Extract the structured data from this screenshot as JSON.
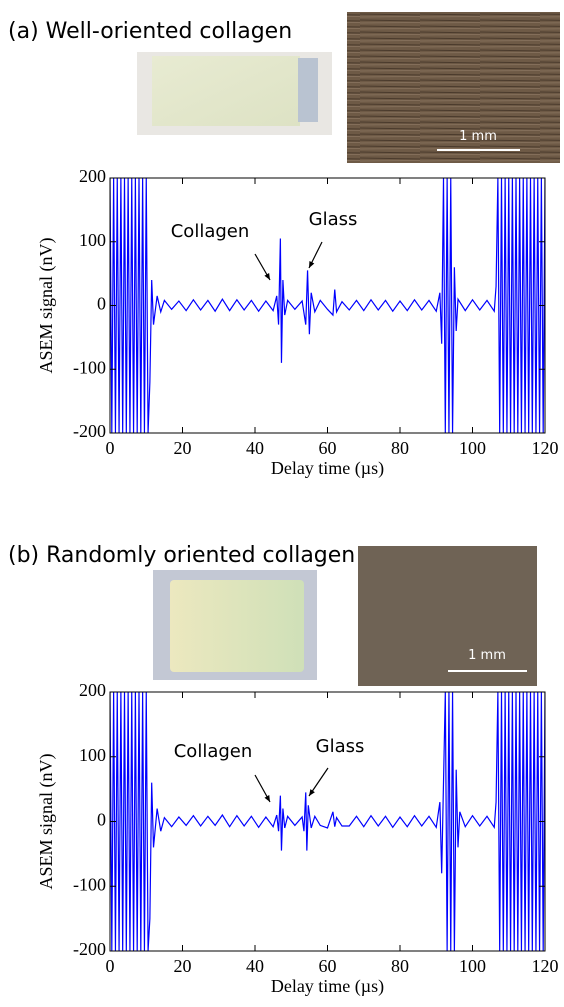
{
  "chart_data": [
    {
      "type": "line",
      "title": "(a) Well-oriented collagen",
      "scale_bar_label": "1 mm",
      "x_label": "Delay time (µs)",
      "y_label": "ASEM signal (nV)",
      "annotations": [
        "Collagen",
        "Glass"
      ],
      "xlim": [
        0,
        120
      ],
      "ylim": [
        -200,
        200
      ],
      "xticks": [
        0,
        20,
        40,
        60,
        80,
        100,
        120
      ],
      "yticks": [
        -200,
        -100,
        0,
        100,
        200
      ],
      "color": "#0000ff",
      "x": [
        0,
        0.5,
        1,
        1.5,
        2,
        2.5,
        3,
        3.5,
        4,
        4.5,
        5,
        5.5,
        6,
        6.5,
        7,
        7.5,
        8,
        8.5,
        9,
        9.5,
        10,
        10.5,
        11,
        11.5,
        12,
        13,
        14,
        15,
        17,
        19,
        21,
        23,
        25,
        27,
        29,
        31,
        33,
        35,
        37,
        39,
        41,
        43,
        45,
        46,
        46.5,
        47,
        47.3,
        47.7,
        48.2,
        49,
        51,
        53,
        54,
        54.5,
        55,
        55.5,
        56.5,
        58,
        60,
        61.5,
        62,
        62.5,
        64,
        66,
        68,
        70,
        72,
        74,
        76,
        78,
        80,
        82,
        84,
        86,
        88,
        90,
        91,
        91.5,
        92,
        92.5,
        93,
        93.5,
        94,
        94.5,
        95,
        95.5,
        96,
        98,
        100,
        102,
        104,
        106,
        106.5,
        107,
        107.5,
        108,
        108.5,
        109,
        109.5,
        110,
        110.5,
        111,
        111.5,
        112,
        112.5,
        113,
        113.5,
        114,
        114.5,
        115,
        115.5,
        116,
        116.5,
        117,
        117.5,
        118,
        118.5,
        119,
        119.5,
        120
      ],
      "values": [
        200,
        -200,
        200,
        -200,
        200,
        -200,
        200,
        -200,
        200,
        -200,
        200,
        -200,
        200,
        -200,
        200,
        -200,
        200,
        -200,
        200,
        -200,
        200,
        -200,
        -120,
        40,
        -30,
        15,
        -10,
        8,
        -6,
        7,
        -8,
        9,
        -7,
        8,
        -9,
        10,
        -8,
        9,
        -7,
        8,
        -9,
        7,
        -8,
        15,
        -30,
        105,
        -90,
        40,
        -15,
        8,
        -6,
        7,
        -30,
        55,
        -45,
        20,
        -10,
        8,
        -6,
        -15,
        25,
        -10,
        6,
        -7,
        8,
        -8,
        9,
        -7,
        8,
        -9,
        7,
        -8,
        9,
        -7,
        8,
        -9,
        20,
        -60,
        200,
        -200,
        200,
        -200,
        200,
        -200,
        60,
        -40,
        10,
        -8,
        9,
        -7,
        8,
        -9,
        30,
        200,
        -200,
        200,
        -200,
        200,
        -200,
        200,
        -200,
        200,
        -200,
        200,
        -200,
        200,
        -200,
        200,
        -200,
        200,
        -200,
        200,
        -200,
        200,
        -200,
        200,
        -200,
        200,
        -200,
        200
      ]
    },
    {
      "type": "line",
      "title": "(b) Randomly oriented collagen",
      "scale_bar_label": "1 mm",
      "x_label": "Delay time (µs)",
      "y_label": "ASEM signal (nV)",
      "annotations": [
        "Collagen",
        "Glass"
      ],
      "xlim": [
        0,
        120
      ],
      "ylim": [
        -200,
        200
      ],
      "xticks": [
        0,
        20,
        40,
        60,
        80,
        100,
        120
      ],
      "yticks": [
        -200,
        -100,
        0,
        100,
        200
      ],
      "color": "#0000ff",
      "x": [
        0,
        0.5,
        1,
        1.5,
        2,
        2.5,
        3,
        3.5,
        4,
        4.5,
        5,
        5.5,
        6,
        6.5,
        7,
        7.5,
        8,
        8.5,
        9,
        9.5,
        10,
        10.5,
        11,
        11.5,
        12,
        13,
        14,
        15,
        17,
        19,
        21,
        23,
        25,
        27,
        29,
        31,
        33,
        35,
        37,
        39,
        41,
        43,
        45,
        46,
        46.5,
        47,
        47.3,
        47.7,
        48.2,
        49,
        51,
        53,
        53.5,
        54,
        54.3,
        54.7,
        55.5,
        56.5,
        58,
        60,
        61.5,
        62,
        62.5,
        64,
        66,
        68,
        70,
        72,
        74,
        76,
        78,
        80,
        82,
        84,
        86,
        88,
        90,
        91,
        91.5,
        92.5,
        93,
        93.5,
        94,
        94.5,
        95,
        95.5,
        96,
        96.5,
        98,
        100,
        102,
        104,
        106,
        106.5,
        107,
        107.5,
        108,
        108.5,
        109,
        109.5,
        110,
        110.5,
        111,
        111.5,
        112,
        112.5,
        113,
        113.5,
        114,
        114.5,
        115,
        115.5,
        116,
        116.5,
        117,
        117.5,
        118,
        118.5,
        119,
        119.5,
        120
      ],
      "values": [
        200,
        -200,
        200,
        -200,
        200,
        -200,
        200,
        -200,
        200,
        -200,
        200,
        -200,
        200,
        -200,
        200,
        -200,
        200,
        -200,
        200,
        -200,
        200,
        -200,
        -150,
        60,
        -40,
        20,
        -15,
        6,
        -8,
        7,
        -6,
        9,
        -7,
        8,
        -6,
        10,
        -8,
        9,
        -7,
        8,
        -9,
        7,
        -8,
        10,
        -15,
        40,
        -45,
        20,
        -10,
        8,
        -6,
        7,
        -15,
        45,
        -45,
        25,
        -10,
        8,
        -6,
        -10,
        15,
        -8,
        6,
        -7,
        -7,
        8,
        -8,
        9,
        -7,
        8,
        -9,
        7,
        -8,
        9,
        -7,
        8,
        -9,
        30,
        -80,
        200,
        -200,
        200,
        -200,
        200,
        -200,
        80,
        -40,
        15,
        -8,
        9,
        -7,
        8,
        -9,
        30,
        200,
        -200,
        200,
        -200,
        200,
        -200,
        200,
        -200,
        200,
        -200,
        200,
        -200,
        200,
        -200,
        200,
        -200,
        200,
        -200,
        200,
        -200,
        200,
        -200,
        200,
        -200,
        200,
        -200,
        200
      ]
    }
  ]
}
